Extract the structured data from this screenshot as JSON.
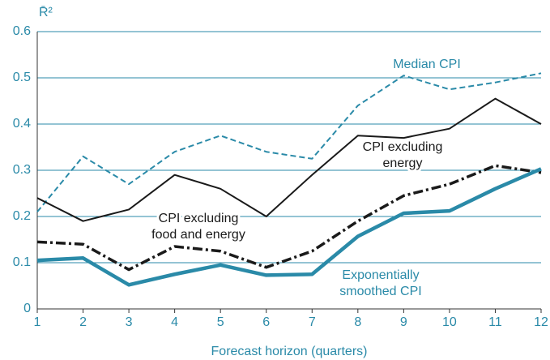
{
  "chart_data": {
    "type": "line",
    "y_label": "R̄²",
    "x_label": "Forecast horizon (quarters)",
    "x": [
      1,
      2,
      3,
      4,
      5,
      6,
      7,
      8,
      9,
      10,
      11,
      12
    ],
    "xlim": [
      1,
      12
    ],
    "xticks": [
      1,
      2,
      3,
      4,
      5,
      6,
      7,
      8,
      9,
      10,
      11,
      12
    ],
    "ylim": [
      0,
      0.6
    ],
    "yticks": [
      0,
      0.1,
      0.2,
      0.3,
      0.4,
      0.5,
      0.6
    ],
    "grid": true,
    "grid_color": "#2a8aa8",
    "series": [
      {
        "name": "Median CPI",
        "color": "#2a8aa8",
        "style": "dashed",
        "width": 2,
        "values": [
          0.21,
          0.33,
          0.27,
          0.34,
          0.375,
          0.34,
          0.325,
          0.44,
          0.505,
          0.475,
          0.49,
          0.51
        ]
      },
      {
        "name": "CPI excluding energy",
        "color": "#1a1a1a",
        "style": "solid",
        "width": 2,
        "values": [
          0.24,
          0.19,
          0.215,
          0.29,
          0.26,
          0.2,
          0.29,
          0.375,
          0.37,
          0.39,
          0.455,
          0.4
        ]
      },
      {
        "name": "CPI excluding food and energy",
        "color": "#1a1a1a",
        "style": "dashdot",
        "width": 3.5,
        "values": [
          0.145,
          0.14,
          0.085,
          0.135,
          0.125,
          0.09,
          0.125,
          0.19,
          0.245,
          0.27,
          0.31,
          0.295
        ]
      },
      {
        "name": "Exponentially smoothed CPI",
        "color": "#2a8aa8",
        "style": "solid",
        "width": 4.5,
        "values": [
          0.105,
          0.11,
          0.052,
          0.075,
          0.095,
          0.073,
          0.075,
          0.157,
          0.207,
          0.212,
          0.26,
          0.303
        ]
      }
    ],
    "annotations": [
      {
        "lines": [
          "Median CPI"
        ],
        "color": "#2a8aa8"
      },
      {
        "lines": [
          "CPI excluding",
          "energy"
        ],
        "color": "#1a1a1a"
      },
      {
        "lines": [
          "CPI excluding",
          "food and energy"
        ],
        "color": "#1a1a1a"
      },
      {
        "lines": [
          "Exponentially",
          "smoothed CPI"
        ],
        "color": "#2a8aa8"
      }
    ]
  }
}
